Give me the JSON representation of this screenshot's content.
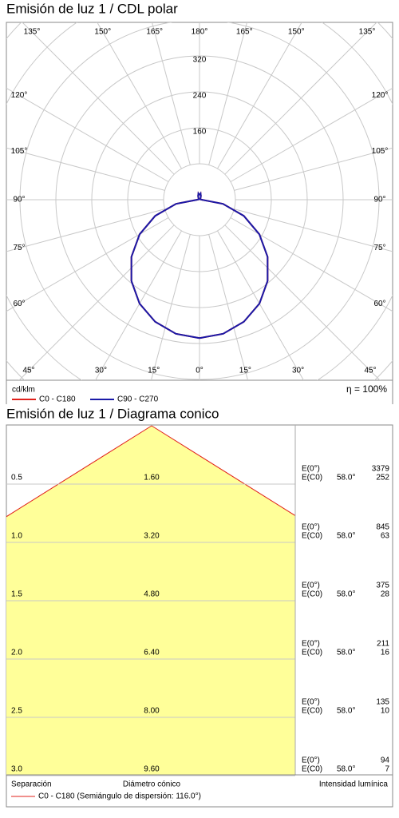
{
  "chart_data": [
    {
      "type": "polar",
      "title": "Emisión de luz 1 / CDL polar",
      "unit": "cd/klm",
      "annotation": "η = 100%",
      "rlim": [
        0,
        400
      ],
      "rgrid": [
        80,
        160,
        240,
        320,
        400,
        480,
        560,
        640
      ],
      "rticks": [
        160,
        240,
        320
      ],
      "angle_ticks": [
        {
          "value": 0,
          "label": "0°"
        },
        {
          "value": 15,
          "label": "15°"
        },
        {
          "value": 30,
          "label": "30°"
        },
        {
          "value": 45,
          "label": "45°"
        },
        {
          "value": 60,
          "label": "60°"
        },
        {
          "value": 75,
          "label": "75°"
        },
        {
          "value": 90,
          "label": "90°"
        },
        {
          "value": 105,
          "label": "105°"
        },
        {
          "value": 120,
          "label": "120°"
        },
        {
          "value": 135,
          "label": "135°"
        },
        {
          "value": 150,
          "label": "150°"
        },
        {
          "value": 165,
          "label": "165°"
        },
        {
          "value": 180,
          "label": "180°"
        }
      ],
      "x": [
        0,
        10,
        20,
        30,
        40,
        50,
        60,
        70,
        80,
        90,
        100,
        110,
        120,
        130,
        140,
        150,
        160,
        170,
        180
      ],
      "series": [
        {
          "name": "C0 - C180",
          "color": "#e0201b",
          "values": [
            308,
            303,
            289,
            267,
            236,
            198,
            154,
            105,
            53,
            5,
            3,
            2,
            2,
            2,
            3,
            5,
            9,
            14,
            10
          ]
        },
        {
          "name": "C90 - C270",
          "color": "#1a1aa8",
          "values": [
            308,
            303,
            289,
            267,
            236,
            198,
            154,
            105,
            53,
            5,
            3,
            2,
            2,
            2,
            3,
            5,
            9,
            14,
            10
          ]
        }
      ]
    },
    {
      "type": "cone",
      "title": "Emisión de luz 1 / Diagrama conico",
      "half_angle": {
        "value": 58,
        "label": "58.0°"
      },
      "e0_label": "E(0°)",
      "ec0_label": "E(C0)",
      "distance_label": "Separación",
      "diameter_label": "Diámetro cónico",
      "intensity_label": "Intensidad lumínica",
      "legend": "C0 - C180 (Semiángulo de dispersión: 116.0°)",
      "color": "#ffff99",
      "edge_color": "#e0201b",
      "rows": [
        {
          "distance": 0.5,
          "diameter": {
            "value": 1.6,
            "label": "1.60"
          },
          "e0": 3379,
          "ec0": 252
        },
        {
          "distance": {
            "value": 1,
            "label": "1.0"
          },
          "diameter": {
            "value": 3.2,
            "label": "3.20"
          },
          "e0": 845,
          "ec0": 63
        },
        {
          "distance": 1.5,
          "diameter": {
            "value": 4.8,
            "label": "4.80"
          },
          "e0": 375,
          "ec0": 28
        },
        {
          "distance": {
            "value": 2,
            "label": "2.0"
          },
          "diameter": {
            "value": 6.4,
            "label": "6.40"
          },
          "e0": 211,
          "ec0": 16
        },
        {
          "distance": 2.5,
          "diameter": {
            "value": 8,
            "label": "8.00"
          },
          "e0": 135,
          "ec0": 10
        },
        {
          "distance": {
            "value": 3,
            "label": "3.0"
          },
          "diameter": {
            "value": 9.6,
            "label": "9.60"
          },
          "e0": 94,
          "ec0": 7
        }
      ]
    }
  ]
}
